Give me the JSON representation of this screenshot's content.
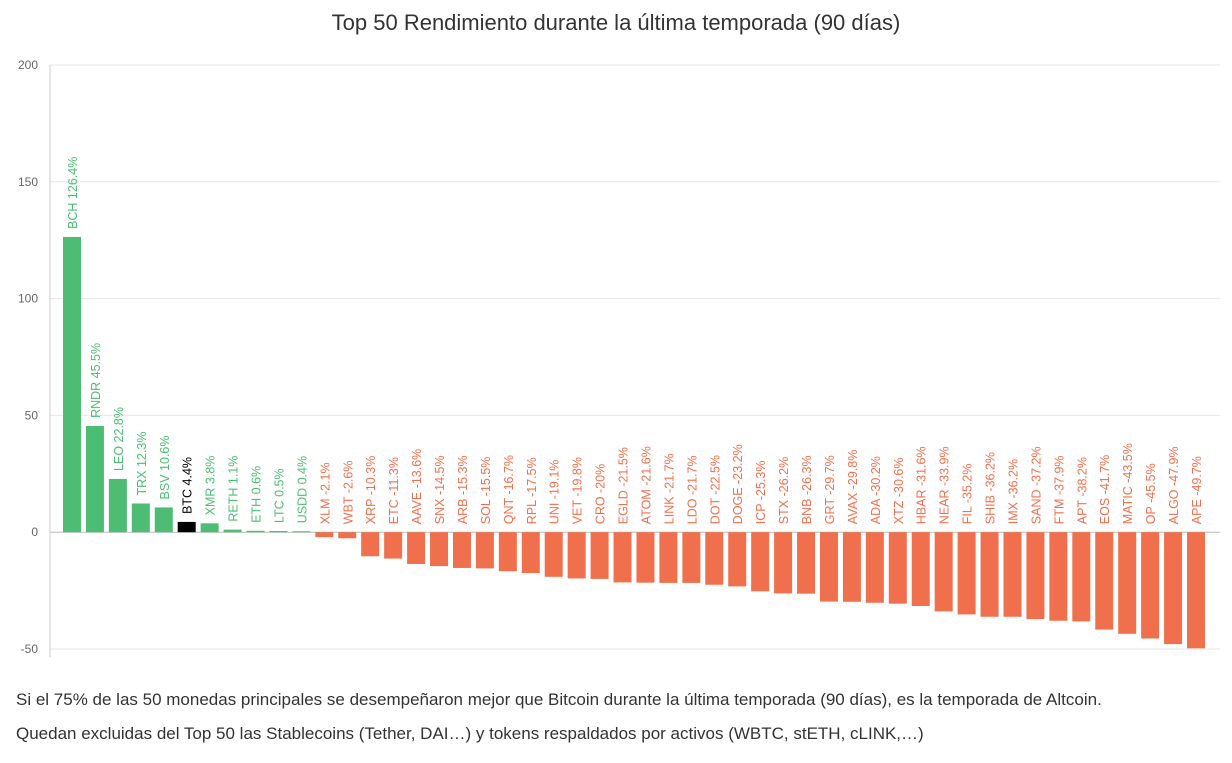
{
  "colors": {
    "positive": "#4dbd74",
    "negative": "#f0704d",
    "benchmark": "#000000",
    "grid": "#e6e6e6",
    "axis": "#cccccc",
    "tick_text": "#666666"
  },
  "footnotes": [
    "Si el 75% de las 50 monedas principales se desempeñaron mejor que Bitcoin durante la última temporada (90 días), es la temporada de Altcoin.",
    "Quedan excluidas del Top 50 las Stablecoins (Tether, DAI…) y tokens respaldados por activos (WBTC, stETH, cLINK,…)"
  ],
  "chart_data": {
    "type": "bar",
    "title": "Top 50 Rendimiento durante la última temporada (90 días)",
    "xlabel": "",
    "ylabel": "",
    "ylim": [
      -50,
      200
    ],
    "yticks": [
      -50,
      0,
      50,
      100,
      150,
      200
    ],
    "grid": true,
    "legend": "none",
    "benchmark": "BTC",
    "categories": [
      "BCH",
      "RNDR",
      "LEO",
      "TRX",
      "BSV",
      "BTC",
      "XMR",
      "RETH",
      "ETH",
      "LTC",
      "USDD",
      "XLM",
      "WBT",
      "XRP",
      "ETC",
      "AAVE",
      "SNX",
      "ARB",
      "SOL",
      "QNT",
      "RPL",
      "UNI",
      "VET",
      "CRO",
      "EGLD",
      "ATOM",
      "LINK",
      "LDO",
      "DOT",
      "DOGE",
      "ICP",
      "STX",
      "BNB",
      "GRT",
      "AVAX",
      "ADA",
      "XTZ",
      "HBAR",
      "NEAR",
      "FIL",
      "SHIB",
      "IMX",
      "SAND",
      "FTM",
      "APT",
      "EOS",
      "MATIC",
      "OP",
      "ALGO",
      "APE"
    ],
    "values": [
      126.4,
      45.5,
      22.8,
      12.3,
      10.6,
      4.4,
      3.8,
      1.1,
      0.6,
      0.5,
      0.4,
      -2.1,
      -2.6,
      -10.3,
      -11.3,
      -13.6,
      -14.5,
      -15.3,
      -15.5,
      -16.7,
      -17.5,
      -19.1,
      -19.8,
      -20,
      -21.5,
      -21.6,
      -21.7,
      -21.7,
      -22.5,
      -23.2,
      -25.3,
      -26.2,
      -26.3,
      -29.7,
      -29.8,
      -30.2,
      -30.6,
      -31.6,
      -33.9,
      -35.2,
      -36.2,
      -36.2,
      -37.2,
      -37.9,
      -38.2,
      -41.7,
      -43.5,
      -45.5,
      -47.9,
      -49.7
    ],
    "labels": [
      "BCH 126.4%",
      "RNDR 45.5%",
      "LEO 22.8%",
      "TRX 12.3%",
      "BSV 10.6%",
      "BTC 4.4%",
      "XMR 3.8%",
      "RETH 1.1%",
      "ETH 0.6%",
      "LTC 0.5%",
      "USDD 0.4%",
      "XLM -2.1%",
      "WBT -2.6%",
      "XRP -10.3%",
      "ETC -11.3%",
      "AAVE -13.6%",
      "SNX -14.5%",
      "ARB -15.3%",
      "SOL -15.5%",
      "QNT -16.7%",
      "RPL -17.5%",
      "UNI -19.1%",
      "VET -19.8%",
      "CRO -20%",
      "EGLD -21.5%",
      "ATOM -21.6%",
      "LINK -21.7%",
      "LDO -21.7%",
      "DOT -22.5%",
      "DOGE -23.2%",
      "ICP -25.3%",
      "STX -26.2%",
      "BNB -26.3%",
      "GRT -29.7%",
      "AVAX -29.8%",
      "ADA -30.2%",
      "XTZ -30.6%",
      "HBAR -31.6%",
      "NEAR -33.9%",
      "FIL -35.2%",
      "SHIB -36.2%",
      "IMX -36.2%",
      "SAND -37.2%",
      "FTM -37.9%",
      "APT -38.2%",
      "EOS -41.7%",
      "MATIC -43.5%",
      "OP -45.5%",
      "ALGO -47.9%",
      "APE -49.7%"
    ]
  }
}
